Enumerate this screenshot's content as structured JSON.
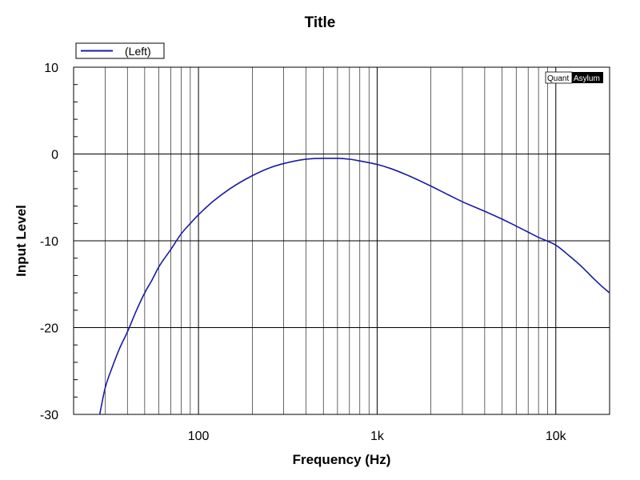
{
  "chart_data": {
    "type": "line",
    "title": "Title",
    "xlabel": "Frequency (Hz)",
    "ylabel": "Input Level",
    "xscale": "log",
    "xlim": [
      20,
      20000
    ],
    "ylim": [
      -30,
      10
    ],
    "x_ticks": [
      {
        "value": 100,
        "label": "100"
      },
      {
        "value": 1000,
        "label": "1k"
      },
      {
        "value": 10000,
        "label": "10k"
      }
    ],
    "y_ticks": [
      {
        "value": 10,
        "label": "10"
      },
      {
        "value": 0,
        "label": "0"
      },
      {
        "value": -10,
        "label": "-10"
      },
      {
        "value": -20,
        "label": "-20"
      },
      {
        "value": -30,
        "label": "-30"
      }
    ],
    "grid": true,
    "legend_position": "top-left",
    "series": [
      {
        "name": "(Left)",
        "color": "#1a1aa6",
        "x": [
          28,
          30,
          33,
          36,
          40,
          45,
          50,
          55,
          60,
          70,
          80,
          90,
          100,
          120,
          150,
          200,
          250,
          300,
          400,
          500,
          600,
          700,
          800,
          1000,
          1200,
          1500,
          2000,
          2500,
          3000,
          4000,
          5000,
          6000,
          7000,
          8000,
          10000,
          12000,
          14000,
          16000,
          18000,
          20000
        ],
        "y": [
          -30,
          -27,
          -24.5,
          -22.5,
          -20.5,
          -18,
          -16,
          -14.5,
          -13,
          -11,
          -9.2,
          -8,
          -7,
          -5.5,
          -4,
          -2.5,
          -1.6,
          -1.1,
          -0.6,
          -0.5,
          -0.5,
          -0.6,
          -0.8,
          -1.2,
          -1.7,
          -2.5,
          -3.7,
          -4.7,
          -5.5,
          -6.6,
          -7.5,
          -8.3,
          -9,
          -9.6,
          -10.5,
          -11.8,
          -13,
          -14.2,
          -15.2,
          -16
        ]
      }
    ],
    "watermark": {
      "part1": "Quant",
      "part2": "Asylum"
    }
  }
}
